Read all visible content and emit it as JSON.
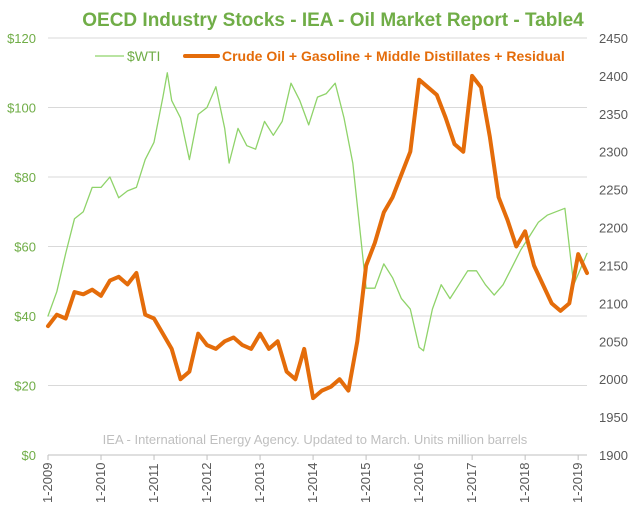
{
  "colors": {
    "wti": "#8fd36a",
    "stocks": "#e46c0a",
    "grid": "#d9d9d9",
    "title": "#70ad47"
  },
  "chart_data": {
    "type": "line",
    "title": "OECD Industry Stocks - IEA - Oil Market Report - Table4",
    "annotation": "IEA - International Energy Agency. Updated to March. Units million barrels",
    "legend_position": "top",
    "grid": "horizontal",
    "x_axis": {
      "type": "date",
      "range": [
        "2009-01",
        "2019-03"
      ],
      "tick_labels": [
        "1-2009",
        "1-2010",
        "1-2011",
        "1-2012",
        "1-2013",
        "1-2014",
        "1-2015",
        "1-2016",
        "1-2017",
        "1-2018",
        "1-2019"
      ]
    },
    "y_left": {
      "min": 0,
      "max": 120,
      "step": 20,
      "tick_labels": [
        "$0",
        "$20",
        "$40",
        "$60",
        "$80",
        "$100",
        "$120"
      ]
    },
    "y_right": {
      "min": 1900,
      "max": 2450,
      "step": 50,
      "tick_labels": [
        "1900",
        "1950",
        "2000",
        "2050",
        "2100",
        "2150",
        "2200",
        "2250",
        "2300",
        "2350",
        "2400",
        "2450"
      ]
    },
    "series": [
      {
        "name": "$WTI",
        "axis": "left",
        "x": [
          "2009-01",
          "2009-03",
          "2009-05",
          "2009-07",
          "2009-09",
          "2009-11",
          "2010-01",
          "2010-03",
          "2010-05",
          "2010-07",
          "2010-09",
          "2010-11",
          "2011-01",
          "2011-03",
          "2011-04",
          "2011-05",
          "2011-07",
          "2011-09",
          "2011-11",
          "2012-01",
          "2012-03",
          "2012-05",
          "2012-06",
          "2012-08",
          "2012-10",
          "2012-12",
          "2013-02",
          "2013-04",
          "2013-06",
          "2013-08",
          "2013-10",
          "2013-12",
          "2014-02",
          "2014-04",
          "2014-06",
          "2014-08",
          "2014-10",
          "2014-12",
          "2015-01",
          "2015-03",
          "2015-05",
          "2015-07",
          "2015-09",
          "2015-11",
          "2016-01",
          "2016-02",
          "2016-04",
          "2016-06",
          "2016-08",
          "2016-10",
          "2016-12",
          "2017-02",
          "2017-04",
          "2017-06",
          "2017-08",
          "2017-10",
          "2017-12",
          "2018-02",
          "2018-04",
          "2018-06",
          "2018-08",
          "2018-10",
          "2018-12",
          "2019-01",
          "2019-03"
        ],
        "values": [
          40,
          47,
          58,
          68,
          70,
          77,
          77,
          80,
          74,
          76,
          77,
          85,
          90,
          103,
          110,
          102,
          97,
          85,
          98,
          100,
          106,
          94,
          84,
          94,
          89,
          88,
          96,
          92,
          96,
          107,
          102,
          95,
          103,
          104,
          107,
          97,
          84,
          60,
          48,
          48,
          55,
          51,
          45,
          42,
          31,
          30,
          42,
          49,
          45,
          49,
          53,
          53,
          49,
          46,
          49,
          54,
          59,
          63,
          67,
          69,
          70,
          71,
          49,
          52,
          58
        ]
      },
      {
        "name": "Crude Oil + Gasoline + Middle Distillates + Residual",
        "axis": "right",
        "x": [
          "2009-01",
          "2009-03",
          "2009-05",
          "2009-07",
          "2009-09",
          "2009-11",
          "2010-01",
          "2010-03",
          "2010-05",
          "2010-07",
          "2010-09",
          "2010-11",
          "2011-01",
          "2011-03",
          "2011-05",
          "2011-07",
          "2011-09",
          "2011-11",
          "2012-01",
          "2012-03",
          "2012-05",
          "2012-07",
          "2012-09",
          "2012-11",
          "2013-01",
          "2013-03",
          "2013-05",
          "2013-07",
          "2013-09",
          "2013-11",
          "2014-01",
          "2014-03",
          "2014-05",
          "2014-07",
          "2014-09",
          "2014-11",
          "2015-01",
          "2015-03",
          "2015-05",
          "2015-07",
          "2015-09",
          "2015-11",
          "2016-01",
          "2016-03",
          "2016-05",
          "2016-07",
          "2016-09",
          "2016-11",
          "2017-01",
          "2017-03",
          "2017-05",
          "2017-07",
          "2017-09",
          "2017-11",
          "2018-01",
          "2018-03",
          "2018-05",
          "2018-07",
          "2018-09",
          "2018-11",
          "2019-01",
          "2019-03"
        ],
        "values": [
          2070,
          2085,
          2080,
          2115,
          2112,
          2118,
          2110,
          2130,
          2135,
          2125,
          2140,
          2085,
          2080,
          2060,
          2040,
          2000,
          2010,
          2060,
          2045,
          2040,
          2050,
          2055,
          2045,
          2040,
          2060,
          2040,
          2050,
          2010,
          2000,
          2040,
          1975,
          1985,
          1990,
          2000,
          1985,
          2050,
          2150,
          2180,
          2220,
          2240,
          2270,
          2300,
          2395,
          2385,
          2375,
          2345,
          2310,
          2300,
          2400,
          2385,
          2320,
          2240,
          2210,
          2175,
          2195,
          2150,
          2125,
          2100,
          2090,
          2100,
          2165,
          2140
        ]
      }
    ]
  }
}
